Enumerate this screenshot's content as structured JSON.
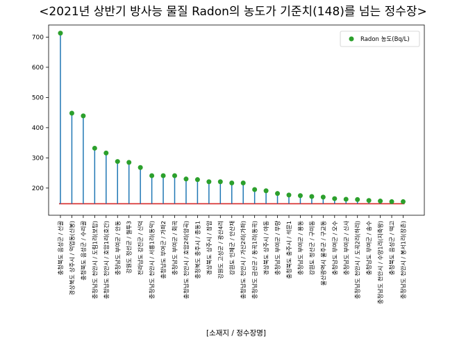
{
  "chart_data": {
    "type": "stem",
    "title": "<2021년 상반기 방사능 물질 Radon의 농도가 기준치(148)를 넘는 정수장>",
    "xlabel": "[소재지 / 정수장명]",
    "ylabel": "",
    "ylim": [
      110,
      740
    ],
    "yticks": [
      200,
      300,
      400,
      500,
      600,
      700
    ],
    "threshold": 148,
    "legend_position": "top-right",
    "series": [
      {
        "name": "Radon 농도(Bq/L)",
        "color": "#2ca02c",
        "stem_color": "#1f77b4",
        "categories": [
          "충청북도 음성군 / 선골",
          "경상북도 상주시 / 억업동(신봉)",
          "충청북도 음성군 / 수리골",
          "충청남도 천안시 / 도림1리(보탑)",
          "충청남도 천안시 / 호암1리(호간)",
          "충청남도 부여군 / 안동",
          "강원도 정선군 / 월투3",
          "전라남도 강진군 / 신덕",
          "충청남도 천안시 / 서룡1리(동막)",
          "충청남도 부여군 / 가좌2",
          "충청남도 부여군 / 회곡",
          "충청남도 천안시 / 호암2리(양곡)",
          "충청북도 충주시 / 종동1",
          "경상북도 상주시 / 장암",
          "강원도 고성군 / 광산4리",
          "강원도 인제군 / 안산재",
          "충청남도 천안시 / 가산2리(가좌)",
          "충청남도 금산군 / 동곡1리(동곡)",
          "경상북도 상주시 / 야동",
          "충청남도 부여군 / 무량",
          "충청북도 충주시 / 석문1",
          "충청남도 부여군 / 용동",
          "강원도 정선군 / 구미동",
          "울산광역시 울주군 / 구교동",
          "충청남도 부여군 / 오수",
          "충청남도 부여군 / 신사",
          "충청남도 천안시 / 도곡2리(하리)",
          "충청남도 부여군 / 송수",
          "충청남도 천안시 / 수양1리(지축왕)",
          "충청북도 음성군 / 떡고",
          "충청남도 천안시 / 봉서1리(장촌)"
        ],
        "values": [
          713,
          448,
          439,
          332,
          316,
          288,
          285,
          268,
          241,
          241,
          241,
          230,
          228,
          221,
          221,
          217,
          217,
          195,
          191,
          182,
          177,
          175,
          172,
          170,
          165,
          163,
          162,
          159,
          157,
          155,
          155
        ]
      }
    ]
  }
}
